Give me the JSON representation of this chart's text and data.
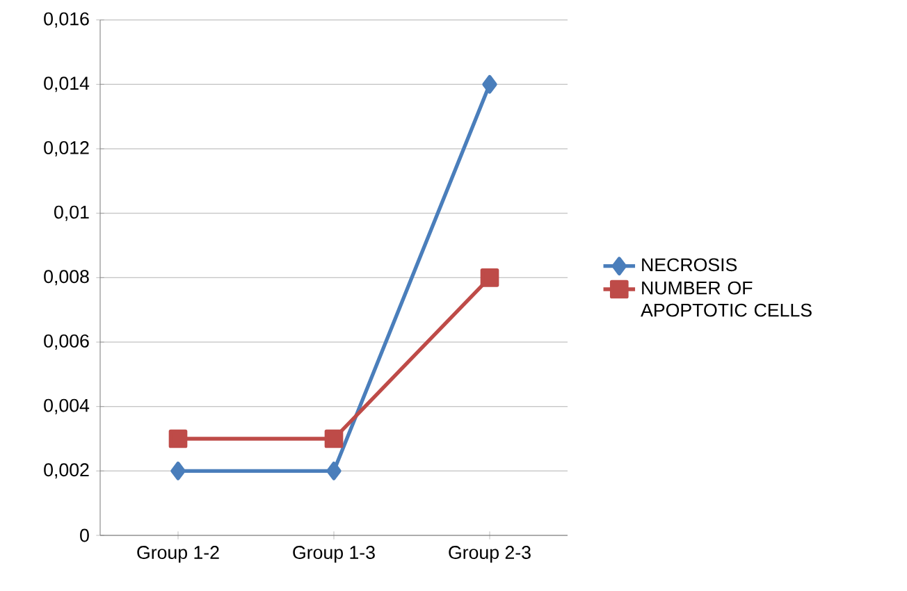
{
  "chart_data": {
    "type": "line",
    "categories": [
      "Group 1-2",
      "Group 1-3",
      "Group 2-3"
    ],
    "series": [
      {
        "name": "NECROSIS",
        "color": "#4a7ebb",
        "values": [
          0.002,
          0.002,
          0.014
        ],
        "marker": "diamond"
      },
      {
        "name": "NUMBER OF APOPTOTIC CELLS",
        "color": "#be4b48",
        "values": [
          0.003,
          0.003,
          0.008
        ],
        "marker": "square"
      }
    ],
    "ylim": [
      0,
      0.016
    ],
    "yticks": [
      0,
      {
        "value": 0.002,
        "label": "0,002"
      },
      {
        "value": 0.004,
        "label": "0,004"
      },
      {
        "value": 0.006,
        "label": "0,006"
      },
      {
        "value": 0.008,
        "label": "0,008"
      },
      {
        "value": 0.01,
        "label": "0,01"
      },
      {
        "value": 0.012,
        "label": "0,012"
      },
      {
        "value": 0.014,
        "label": "0,014"
      },
      {
        "value": 0.016,
        "label": "0,016"
      }
    ],
    "grid": "y",
    "legend": "right",
    "line_style": "solid"
  }
}
